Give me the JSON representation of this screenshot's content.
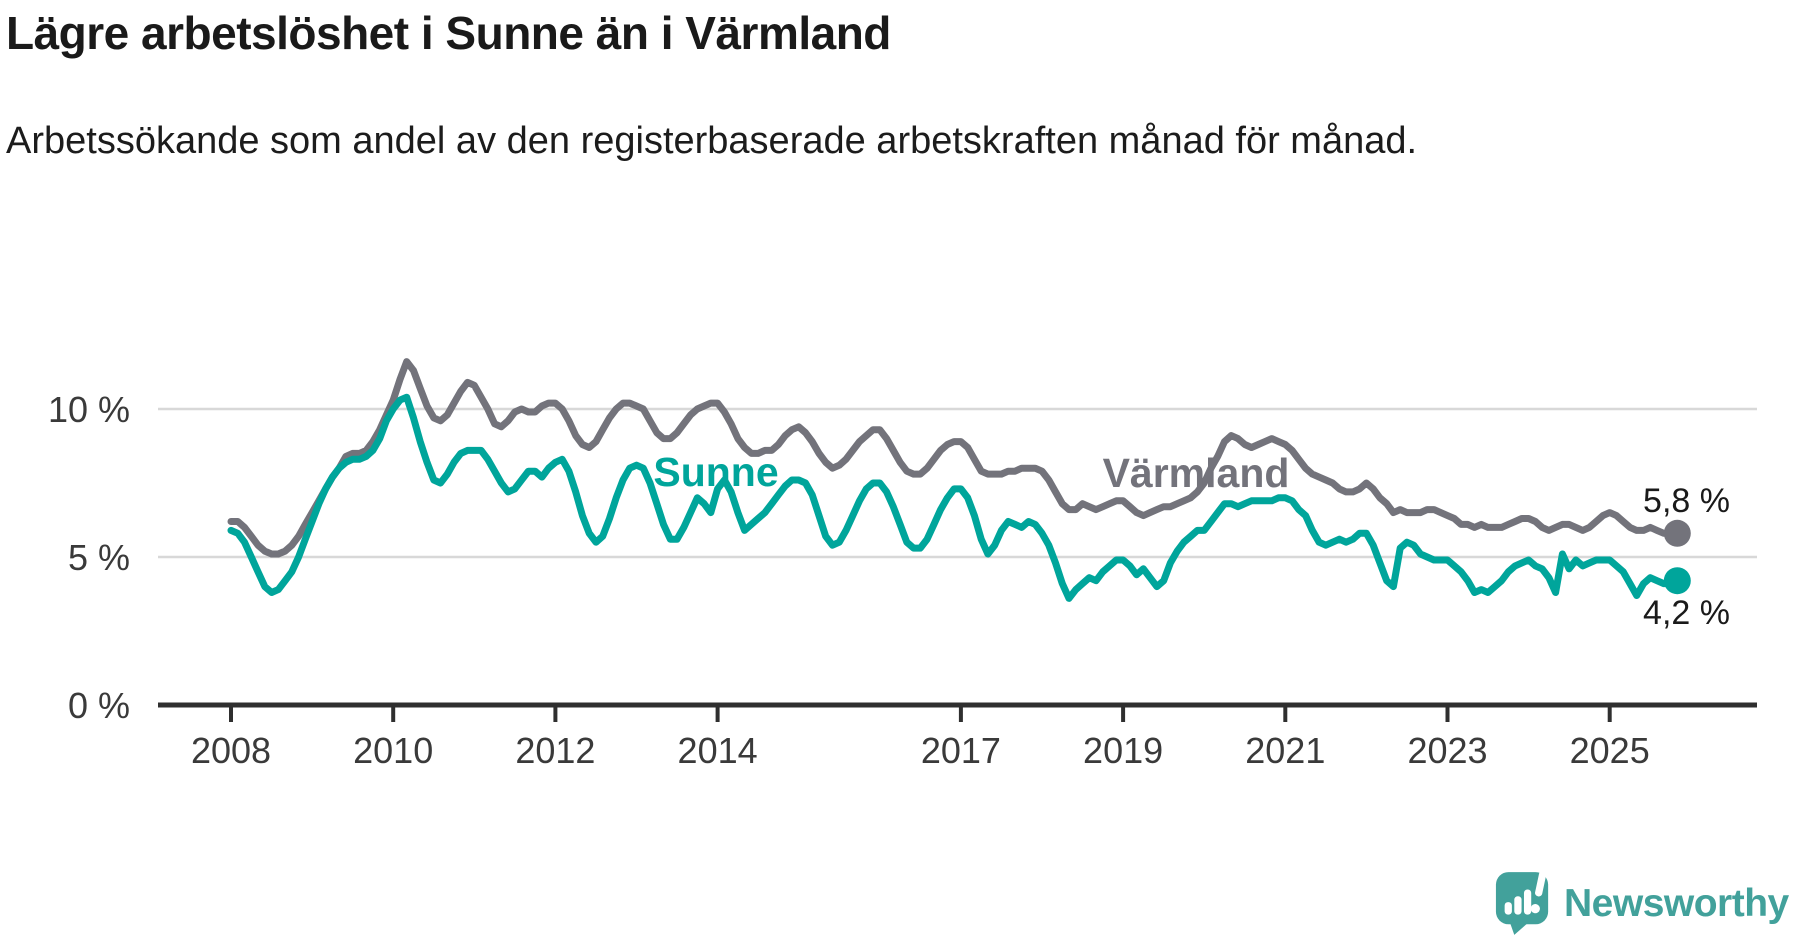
{
  "header": {
    "title": "Lägre arbetslöshet i Sunne än i Värmland",
    "subtitle": "Arbetssökande som andel av den registerbaserade arbetskraften månad för månad."
  },
  "chart_data": {
    "type": "line",
    "unit": "%",
    "frequency": "monthly",
    "start": "2008-01",
    "end": "2025-11",
    "grid": "horizontal-only",
    "x_tick_years": [
      2008,
      2010,
      2012,
      2014,
      2017,
      2019,
      2021,
      2023,
      2025
    ],
    "y_ticks": [
      {
        "value": 0,
        "label": "0 %"
      },
      {
        "value": 5,
        "label": "5 %"
      },
      {
        "value": 10,
        "label": "10 %"
      }
    ],
    "ylim": [
      0,
      12.3
    ],
    "colors": {
      "sunne": "#00A59B",
      "varmland": "#73737B",
      "grid": "#D8D8D8",
      "axis": "#2F2F2F"
    },
    "series": [
      {
        "name": "Värmland",
        "color": "#73737B",
        "end_label": "5,8 %",
        "end_value": 5.8,
        "values": [
          6.2,
          6.2,
          6.0,
          5.7,
          5.4,
          5.2,
          5.1,
          5.1,
          5.2,
          5.4,
          5.7,
          6.1,
          6.5,
          6.9,
          7.3,
          7.7,
          8.0,
          8.4,
          8.5,
          8.5,
          8.6,
          8.9,
          9.3,
          9.8,
          10.3,
          11.0,
          11.6,
          11.3,
          10.7,
          10.1,
          9.7,
          9.6,
          9.8,
          10.2,
          10.6,
          10.9,
          10.8,
          10.4,
          10.0,
          9.5,
          9.4,
          9.6,
          9.9,
          10.0,
          9.9,
          9.9,
          10.1,
          10.2,
          10.2,
          10.0,
          9.6,
          9.1,
          8.8,
          8.7,
          8.9,
          9.3,
          9.7,
          10.0,
          10.2,
          10.2,
          10.1,
          10.0,
          9.6,
          9.2,
          9.0,
          9.0,
          9.2,
          9.5,
          9.8,
          10.0,
          10.1,
          10.2,
          10.2,
          9.9,
          9.5,
          9.0,
          8.7,
          8.5,
          8.5,
          8.6,
          8.6,
          8.8,
          9.1,
          9.3,
          9.4,
          9.2,
          8.9,
          8.5,
          8.2,
          8.0,
          8.1,
          8.3,
          8.6,
          8.9,
          9.1,
          9.3,
          9.3,
          9.0,
          8.6,
          8.2,
          7.9,
          7.8,
          7.8,
          8.0,
          8.3,
          8.6,
          8.8,
          8.9,
          8.9,
          8.7,
          8.3,
          7.9,
          7.8,
          7.8,
          7.8,
          7.9,
          7.9,
          8.0,
          8.0,
          8.0,
          7.9,
          7.6,
          7.2,
          6.8,
          6.6,
          6.6,
          6.8,
          6.7,
          6.6,
          6.7,
          6.8,
          6.9,
          6.9,
          6.7,
          6.5,
          6.4,
          6.5,
          6.6,
          6.7,
          6.7,
          6.8,
          6.9,
          7.0,
          7.2,
          7.5,
          8.0,
          8.4,
          8.9,
          9.1,
          9.0,
          8.8,
          8.7,
          8.8,
          8.9,
          9.0,
          8.9,
          8.8,
          8.6,
          8.3,
          8.0,
          7.8,
          7.7,
          7.6,
          7.5,
          7.3,
          7.2,
          7.2,
          7.3,
          7.5,
          7.3,
          7.0,
          6.8,
          6.5,
          6.6,
          6.5,
          6.5,
          6.5,
          6.6,
          6.6,
          6.5,
          6.4,
          6.3,
          6.1,
          6.1,
          6.0,
          6.1,
          6.0,
          6.0,
          6.0,
          6.1,
          6.2,
          6.3,
          6.3,
          6.2,
          6.0,
          5.9,
          6.0,
          6.1,
          6.1,
          6.0,
          5.9,
          6.0,
          6.2,
          6.4,
          6.5,
          6.4,
          6.2,
          6.0,
          5.9,
          5.9,
          6.0,
          5.9,
          5.8,
          5.8,
          5.8
        ]
      },
      {
        "name": "Sunne",
        "color": "#00A59B",
        "end_label": "4,2 %",
        "end_value": 4.2,
        "values": [
          5.9,
          5.8,
          5.5,
          5.0,
          4.5,
          4.0,
          3.8,
          3.9,
          4.2,
          4.5,
          5.0,
          5.6,
          6.2,
          6.8,
          7.3,
          7.7,
          8.0,
          8.2,
          8.3,
          8.3,
          8.4,
          8.6,
          9.0,
          9.6,
          10.0,
          10.3,
          10.4,
          9.7,
          8.9,
          8.2,
          7.6,
          7.5,
          7.8,
          8.2,
          8.5,
          8.6,
          8.6,
          8.6,
          8.3,
          7.9,
          7.5,
          7.2,
          7.3,
          7.6,
          7.9,
          7.9,
          7.7,
          8.0,
          8.2,
          8.3,
          7.9,
          7.2,
          6.4,
          5.8,
          5.5,
          5.7,
          6.3,
          7.0,
          7.6,
          8.0,
          8.1,
          8.0,
          7.5,
          6.8,
          6.1,
          5.6,
          5.6,
          6.0,
          6.5,
          7.0,
          6.8,
          6.5,
          7.3,
          7.6,
          7.2,
          6.5,
          5.9,
          6.1,
          6.3,
          6.5,
          6.8,
          7.1,
          7.4,
          7.6,
          7.6,
          7.5,
          7.1,
          6.4,
          5.7,
          5.4,
          5.5,
          5.9,
          6.4,
          6.9,
          7.3,
          7.5,
          7.5,
          7.2,
          6.7,
          6.1,
          5.5,
          5.3,
          5.3,
          5.6,
          6.1,
          6.6,
          7.0,
          7.3,
          7.3,
          7.0,
          6.4,
          5.6,
          5.1,
          5.4,
          5.9,
          6.2,
          6.1,
          6.0,
          6.2,
          6.1,
          5.8,
          5.4,
          4.8,
          4.1,
          3.6,
          3.9,
          4.1,
          4.3,
          4.2,
          4.5,
          4.7,
          4.9,
          4.9,
          4.7,
          4.4,
          4.6,
          4.3,
          4.0,
          4.2,
          4.8,
          5.2,
          5.5,
          5.7,
          5.9,
          5.9,
          6.2,
          6.5,
          6.8,
          6.8,
          6.7,
          6.8,
          6.9,
          6.9,
          6.9,
          6.9,
          7.0,
          7.0,
          6.9,
          6.6,
          6.4,
          5.9,
          5.5,
          5.4,
          5.5,
          5.6,
          5.5,
          5.6,
          5.8,
          5.8,
          5.4,
          4.8,
          4.2,
          4.0,
          5.3,
          5.5,
          5.4,
          5.1,
          5.0,
          4.9,
          4.9,
          4.9,
          4.7,
          4.5,
          4.2,
          3.8,
          3.9,
          3.8,
          4.0,
          4.2,
          4.5,
          4.7,
          4.8,
          4.9,
          4.7,
          4.6,
          4.3,
          3.8,
          5.1,
          4.6,
          4.9,
          4.7,
          4.8,
          4.9,
          4.9,
          4.9,
          4.7,
          4.5,
          4.1,
          3.7,
          4.1,
          4.3,
          4.2,
          4.1,
          4.1,
          4.2
        ]
      }
    ]
  },
  "footer": {
    "brand": "Newsworthy",
    "logo_icon": "newsworthy-bubble-barchart-icon"
  }
}
